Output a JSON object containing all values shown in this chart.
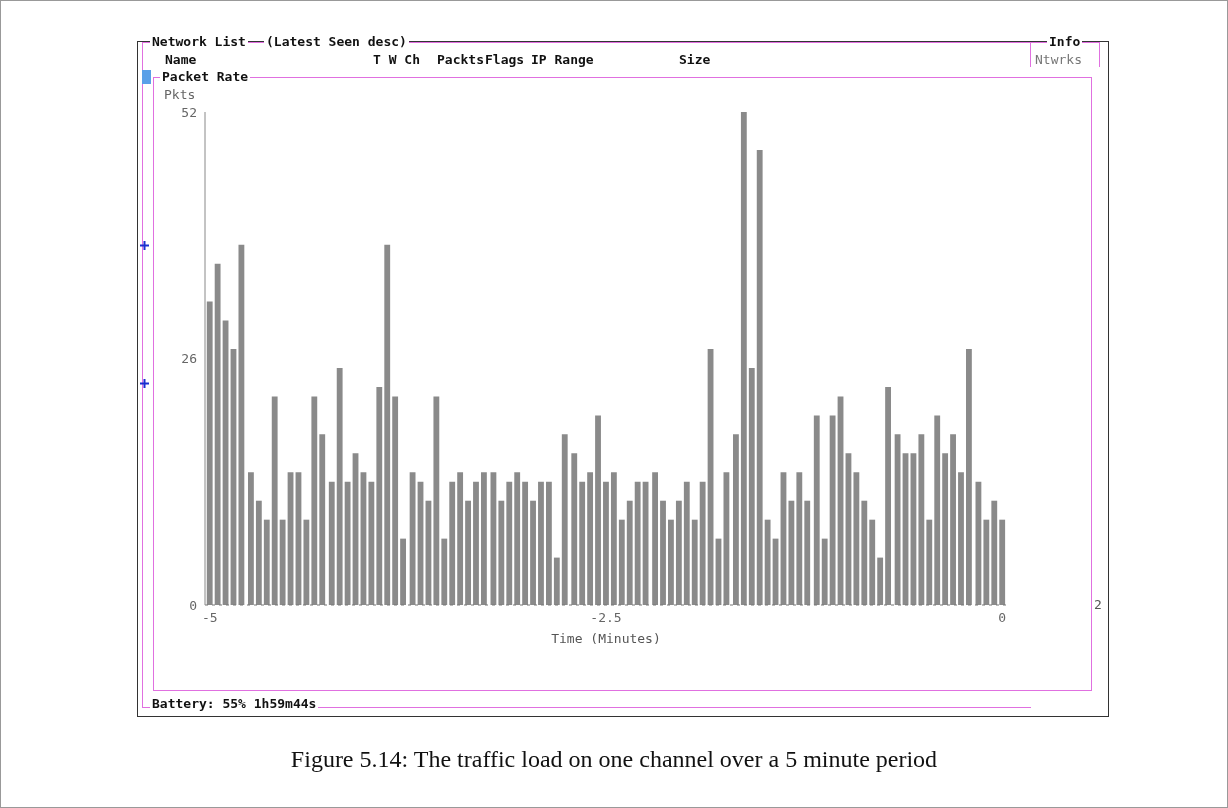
{
  "chart_data": {
    "type": "bar",
    "title": "Packet Rate",
    "xlabel": "Time (Minutes)",
    "ylabel": "Pkts",
    "annotations": [
      "Network List",
      "(Latest Seen desc)",
      "Name",
      "T W Ch",
      "Packts",
      "Flags",
      "IP Range",
      "Size",
      "Info",
      "Ntwrks",
      "2",
      "Battery: 55% 1h59m44s",
      "Figure 5.14: The traffic load on one channel over a 5 minute period"
    ],
    "x": [
      -5.0,
      -4.95,
      -4.9,
      -4.85,
      -4.8,
      -4.74,
      -4.69,
      -4.64,
      -4.59,
      -4.54,
      -4.49,
      -4.44,
      -4.39,
      -4.34,
      -4.29,
      -4.23,
      -4.18,
      -4.13,
      -4.08,
      -4.03,
      -3.98,
      -3.93,
      -3.88,
      -3.83,
      -3.78,
      -3.72,
      -3.67,
      -3.62,
      -3.57,
      -3.52,
      -3.47,
      -3.42,
      -3.37,
      -3.32,
      -3.27,
      -3.21,
      -3.16,
      -3.11,
      -3.06,
      -3.01,
      -2.96,
      -2.91,
      -2.86,
      -2.81,
      -2.76,
      -2.7,
      -2.65,
      -2.6,
      -2.55,
      -2.5,
      -2.45,
      -2.4,
      -2.35,
      -2.3,
      -2.25,
      -2.19,
      -2.14,
      -2.09,
      -2.04,
      -1.99,
      -1.94,
      -1.89,
      -1.84,
      -1.79,
      -1.74,
      -1.68,
      -1.63,
      -1.58,
      -1.53,
      -1.48,
      -1.43,
      -1.38,
      -1.33,
      -1.28,
      -1.23,
      -1.17,
      -1.12,
      -1.07,
      -1.02,
      -0.97,
      -0.92,
      -0.87,
      -0.82,
      -0.77,
      -0.72,
      -0.66,
      -0.61,
      -0.56,
      -0.51,
      -0.46,
      -0.41,
      -0.36,
      -0.31,
      -0.26,
      -0.21,
      -0.15,
      -0.1,
      -0.05,
      0.0
    ],
    "values": [
      32,
      36,
      30,
      27,
      38,
      14,
      11,
      9,
      22,
      9,
      14,
      14,
      9,
      22,
      18,
      13,
      25,
      13,
      16,
      14,
      13,
      23,
      38,
      22,
      7,
      14,
      13,
      11,
      22,
      7,
      13,
      14,
      11,
      13,
      14,
      14,
      11,
      13,
      14,
      13,
      11,
      13,
      13,
      5,
      18,
      16,
      13,
      14,
      20,
      13,
      14,
      9,
      11,
      13,
      13,
      14,
      11,
      9,
      11,
      13,
      9,
      13,
      27,
      7,
      14,
      18,
      52,
      25,
      48,
      9,
      7,
      14,
      11,
      14,
      11,
      20,
      7,
      20,
      22,
      16,
      14,
      11,
      9,
      5,
      23,
      18,
      16,
      16,
      18,
      9,
      20,
      16,
      18,
      14,
      27,
      13,
      9,
      11,
      9
    ],
    "color": "#8a8a8a",
    "xlim": [
      -5.03,
      0.03
    ],
    "xticks": [
      -5,
      -2.5,
      0
    ],
    "ylim": [
      0,
      52
    ],
    "yticks": [
      0,
      26,
      52
    ]
  }
}
